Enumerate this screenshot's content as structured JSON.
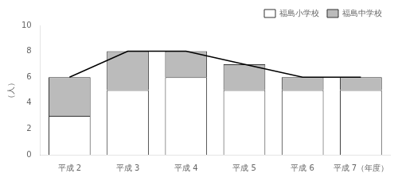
{
  "chart_data": {
    "type": "bar",
    "stacked": true,
    "ylabel": "（人）",
    "categories": [
      "平成 2",
      "平成 3",
      "平成 4",
      "平成 5",
      "平成 6",
      "平成 7（年度）"
    ],
    "series": [
      {
        "name": "福島小学校",
        "color": "#ffffff",
        "values": [
          3,
          5,
          6,
          5,
          5,
          5
        ]
      },
      {
        "name": "福島中学校",
        "color": "#bbbbbb",
        "values": [
          3,
          3,
          2,
          2,
          1,
          1
        ]
      },
      {
        "type": "line",
        "color": "#000000",
        "values": [
          6,
          8,
          8,
          7,
          6,
          6
        ]
      }
    ],
    "ylim": [
      0,
      10
    ],
    "yticks": [
      0,
      2,
      4,
      6,
      8,
      10
    ],
    "grid": false,
    "legend": "upper right"
  }
}
